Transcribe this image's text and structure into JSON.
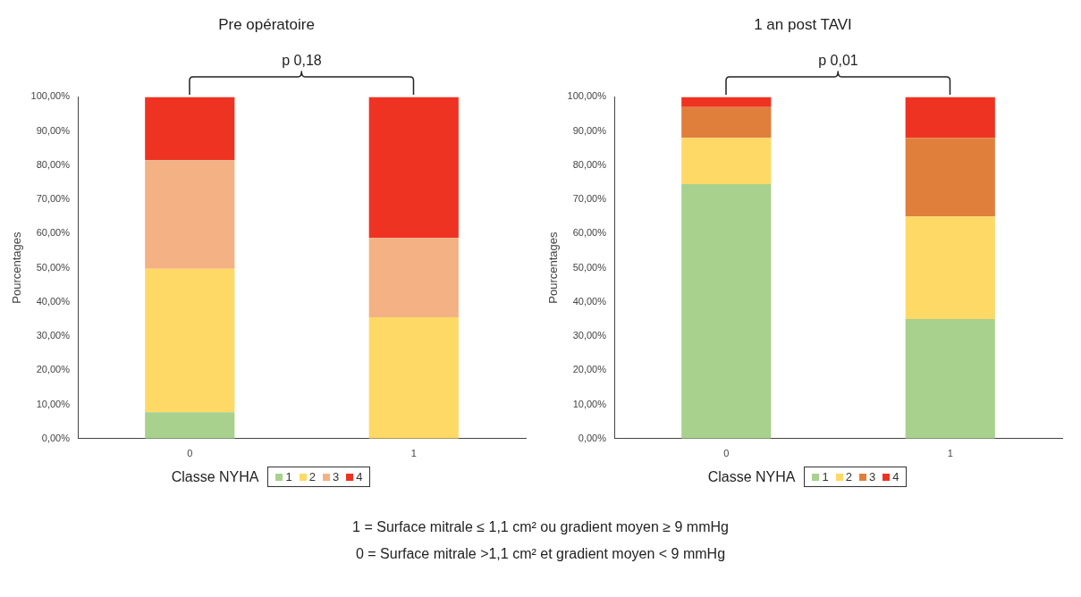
{
  "chart_data": [
    {
      "type": "bar",
      "title": "Pre opératoire",
      "ylabel": "Pourcentages",
      "legend_title": "Classe NYHA",
      "categories": [
        "0",
        "1"
      ],
      "stacked": true,
      "legend": "bottom",
      "ylim": [
        0,
        100
      ],
      "yticks": [
        {
          "value": 0,
          "label": "0,00%"
        },
        {
          "value": 10,
          "label": "10,00%"
        },
        {
          "value": 20,
          "label": "20,00%"
        },
        {
          "value": 30,
          "label": "30,00%"
        },
        {
          "value": 40,
          "label": "40,00%"
        },
        {
          "value": 50,
          "label": "50,00%"
        },
        {
          "value": 60,
          "label": "60,00%"
        },
        {
          "value": 70,
          "label": "70,00%"
        },
        {
          "value": 80,
          "label": "80,00%"
        },
        {
          "value": 90,
          "label": "90,00%"
        },
        {
          "value": 100,
          "label": "100,00%"
        }
      ],
      "series": [
        {
          "name": "1",
          "color": "#a9d18e",
          "values": [
            7.7,
            0
          ]
        },
        {
          "name": "2",
          "color": "#ffd966",
          "values": [
            42,
            35.5
          ]
        },
        {
          "name": "3",
          "color": "#f4b183",
          "values": [
            31.8,
            23.2
          ]
        },
        {
          "name": "4",
          "color": "#ee3323",
          "values": [
            18.5,
            41.3
          ]
        }
      ],
      "annotations": [
        "p 0,18"
      ]
    },
    {
      "type": "bar",
      "title": "1 an post TAVI",
      "ylabel": "Pourcentages",
      "legend_title": "Classe NYHA",
      "categories": [
        "0",
        "1"
      ],
      "stacked": true,
      "legend": "bottom",
      "ylim": [
        0,
        100
      ],
      "yticks": [
        {
          "value": 0,
          "label": "0,00%"
        },
        {
          "value": 10,
          "label": "10,00%"
        },
        {
          "value": 20,
          "label": "20,00%"
        },
        {
          "value": 30,
          "label": "30,00%"
        },
        {
          "value": 40,
          "label": "40,00%"
        },
        {
          "value": 50,
          "label": "50,00%"
        },
        {
          "value": 60,
          "label": "60,00%"
        },
        {
          "value": 70,
          "label": "70,00%"
        },
        {
          "value": 80,
          "label": "80,00%"
        },
        {
          "value": 90,
          "label": "90,00%"
        },
        {
          "value": 100,
          "label": "100,00%"
        }
      ],
      "series": [
        {
          "name": "1",
          "color": "#a9d18e",
          "values": [
            74.5,
            35
          ]
        },
        {
          "name": "2",
          "color": "#ffd966",
          "values": [
            13.5,
            30
          ]
        },
        {
          "name": "3",
          "color": "#e07f3c",
          "values": [
            9,
            23
          ]
        },
        {
          "name": "4",
          "color": "#ee3323",
          "values": [
            3,
            12
          ]
        }
      ],
      "annotations": [
        "p 0,01",
        "1 = Surface mitrale ≤ 1,1 cm² ou gradient moyen ≥ 9 mmHg",
        "0 = Surface mitrale >1,1 cm² et gradient moyen < 9 mmHg"
      ]
    }
  ]
}
